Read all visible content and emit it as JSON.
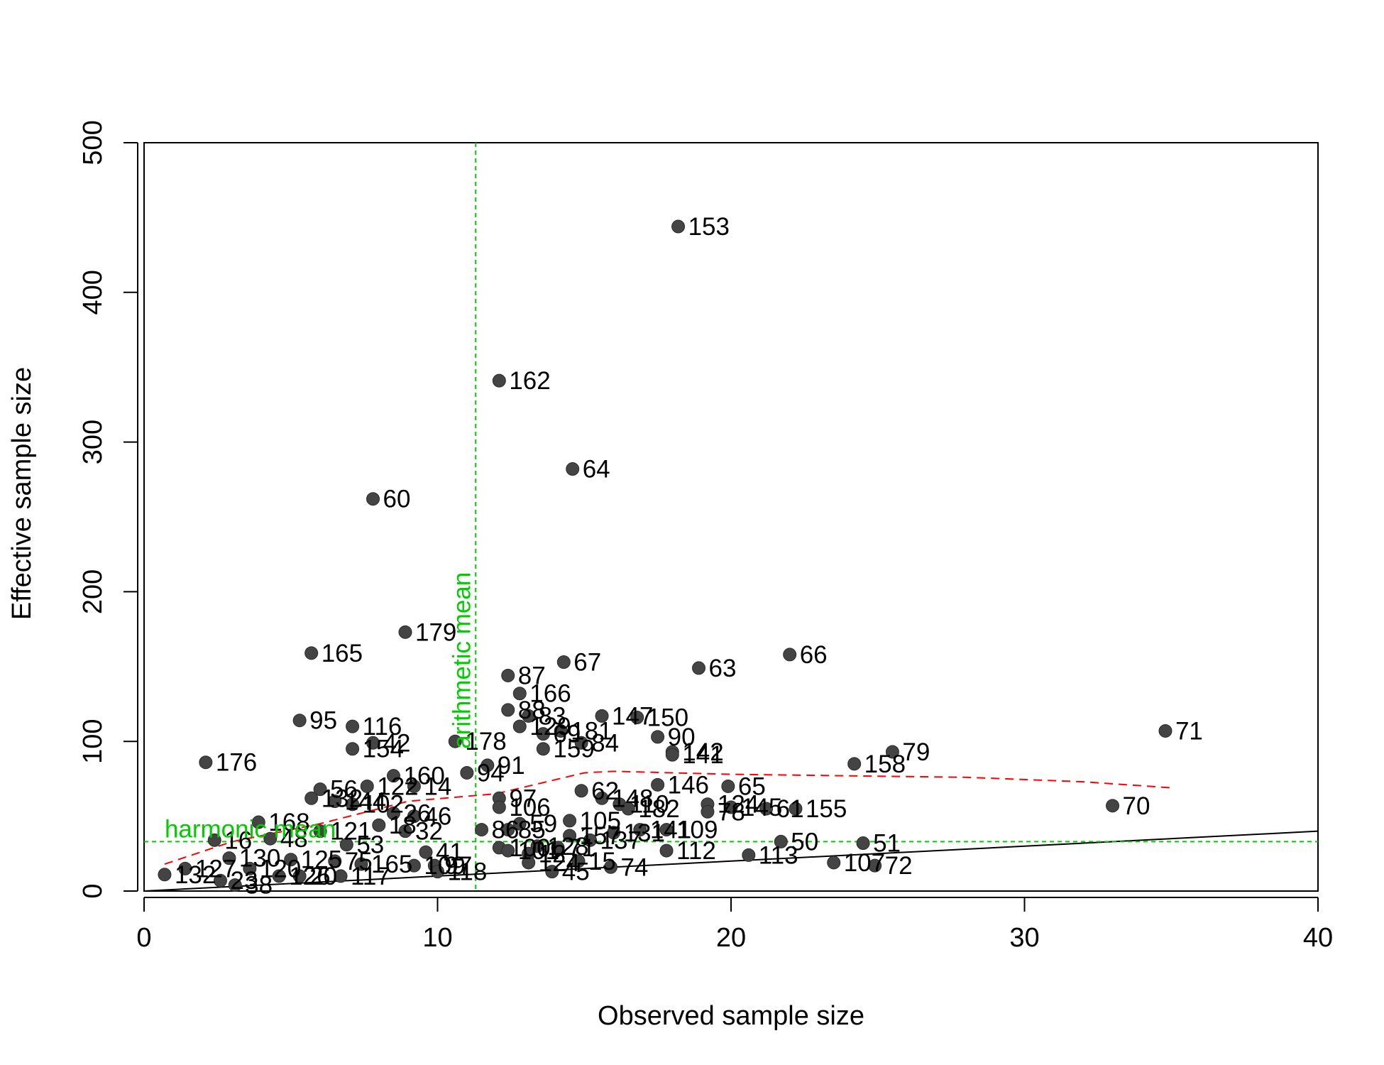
{
  "chart_data": {
    "type": "scatter",
    "title": "",
    "xlabel": "Observed sample size",
    "ylabel": "Effective sample size",
    "xlim": [
      0,
      40
    ],
    "ylim": [
      0,
      500
    ],
    "xticks": [
      0,
      10,
      20,
      30,
      40
    ],
    "yticks": [
      0,
      100,
      200,
      300,
      400,
      500
    ],
    "colors": {
      "points": "#444444",
      "reference_lines": "#00cc00",
      "smooth": "#ff0000",
      "identity": "#000000"
    },
    "reference_lines": {
      "arithmetic_mean": {
        "label": "arithmetic mean",
        "x": 11.3
      },
      "harmonic_mean": {
        "label": "harmonic mean",
        "y": 33
      }
    },
    "identity_line": {
      "x": [
        0,
        40
      ],
      "y": [
        0,
        40
      ]
    },
    "smooth_line": {
      "x": [
        0.7,
        3,
        6,
        9,
        12,
        15,
        16,
        20,
        24,
        28,
        32,
        35
      ],
      "y": [
        18,
        33,
        45,
        60,
        65,
        79,
        80,
        78,
        77,
        76,
        73,
        69
      ]
    },
    "points": [
      {
        "x": 18.2,
        "y": 444,
        "label": "153"
      },
      {
        "x": 12.1,
        "y": 341,
        "label": "162"
      },
      {
        "x": 14.6,
        "y": 282,
        "label": "64"
      },
      {
        "x": 7.8,
        "y": 262,
        "label": "60"
      },
      {
        "x": 8.9,
        "y": 173,
        "label": "179"
      },
      {
        "x": 5.7,
        "y": 159,
        "label": "165"
      },
      {
        "x": 14.3,
        "y": 153,
        "label": "67"
      },
      {
        "x": 22.0,
        "y": 158,
        "label": "66"
      },
      {
        "x": 18.9,
        "y": 149,
        "label": "63"
      },
      {
        "x": 12.4,
        "y": 144,
        "label": "87"
      },
      {
        "x": 12.8,
        "y": 132,
        "label": "166"
      },
      {
        "x": 12.4,
        "y": 121,
        "label": "88"
      },
      {
        "x": 13.1,
        "y": 117,
        "label": "83"
      },
      {
        "x": 15.6,
        "y": 117,
        "label": "147"
      },
      {
        "x": 16.8,
        "y": 116,
        "label": "150"
      },
      {
        "x": 5.3,
        "y": 114,
        "label": "95"
      },
      {
        "x": 7.1,
        "y": 110,
        "label": "116"
      },
      {
        "x": 12.8,
        "y": 110,
        "label": "129"
      },
      {
        "x": 13.6,
        "y": 105,
        "label": "69"
      },
      {
        "x": 14.2,
        "y": 107,
        "label": "181"
      },
      {
        "x": 17.5,
        "y": 103,
        "label": "90"
      },
      {
        "x": 7.8,
        "y": 99,
        "label": "42"
      },
      {
        "x": 10.6,
        "y": 100,
        "label": "178"
      },
      {
        "x": 14.9,
        "y": 99,
        "label": "84"
      },
      {
        "x": 7.1,
        "y": 95,
        "label": "154"
      },
      {
        "x": 13.6,
        "y": 95,
        "label": "159"
      },
      {
        "x": 18.0,
        "y": 93,
        "label": "142"
      },
      {
        "x": 18.0,
        "y": 91,
        "label": "141"
      },
      {
        "x": 34.8,
        "y": 107,
        "label": "71"
      },
      {
        "x": 25.5,
        "y": 93,
        "label": "79"
      },
      {
        "x": 24.2,
        "y": 85,
        "label": "158"
      },
      {
        "x": 2.1,
        "y": 86,
        "label": "176"
      },
      {
        "x": 11.7,
        "y": 84,
        "label": "91"
      },
      {
        "x": 11.0,
        "y": 79,
        "label": "94"
      },
      {
        "x": 8.5,
        "y": 77,
        "label": "160"
      },
      {
        "x": 9.2,
        "y": 70,
        "label": "14"
      },
      {
        "x": 17.5,
        "y": 71,
        "label": "146"
      },
      {
        "x": 19.9,
        "y": 70,
        "label": "65"
      },
      {
        "x": 14.9,
        "y": 67,
        "label": "62"
      },
      {
        "x": 6.0,
        "y": 68,
        "label": "56"
      },
      {
        "x": 7.6,
        "y": 70,
        "label": "122"
      },
      {
        "x": 5.7,
        "y": 62,
        "label": "132"
      },
      {
        "x": 12.1,
        "y": 62,
        "label": "97"
      },
      {
        "x": 6.5,
        "y": 60,
        "label": "144"
      },
      {
        "x": 7.1,
        "y": 58,
        "label": "102"
      },
      {
        "x": 15.6,
        "y": 62,
        "label": "148"
      },
      {
        "x": 16.2,
        "y": 58,
        "label": "110"
      },
      {
        "x": 19.2,
        "y": 58,
        "label": "124"
      },
      {
        "x": 33.0,
        "y": 57,
        "label": "70"
      },
      {
        "x": 16.5,
        "y": 55,
        "label": "182"
      },
      {
        "x": 12.1,
        "y": 56,
        "label": "106"
      },
      {
        "x": 20.0,
        "y": 56,
        "label": "145"
      },
      {
        "x": 21.2,
        "y": 55,
        "label": "61"
      },
      {
        "x": 22.2,
        "y": 55,
        "label": "155"
      },
      {
        "x": 19.2,
        "y": 53,
        "label": "78"
      },
      {
        "x": 8.5,
        "y": 52,
        "label": "26"
      },
      {
        "x": 9.2,
        "y": 50,
        "label": "46"
      },
      {
        "x": 14.5,
        "y": 47,
        "label": "105"
      },
      {
        "x": 3.9,
        "y": 46,
        "label": "168"
      },
      {
        "x": 12.8,
        "y": 45,
        "label": "59"
      },
      {
        "x": 8.0,
        "y": 44,
        "label": "18"
      },
      {
        "x": 16.9,
        "y": 41,
        "label": "141"
      },
      {
        "x": 17.8,
        "y": 41,
        "label": "109"
      },
      {
        "x": 11.5,
        "y": 41,
        "label": "86"
      },
      {
        "x": 12.4,
        "y": 41,
        "label": "85"
      },
      {
        "x": 8.9,
        "y": 40,
        "label": "32"
      },
      {
        "x": 6.0,
        "y": 40,
        "label": "121"
      },
      {
        "x": 16.0,
        "y": 39,
        "label": "131"
      },
      {
        "x": 14.5,
        "y": 37,
        "label": "157"
      },
      {
        "x": 2.4,
        "y": 34,
        "label": "16"
      },
      {
        "x": 4.3,
        "y": 35,
        "label": "48"
      },
      {
        "x": 15.2,
        "y": 34,
        "label": "137"
      },
      {
        "x": 21.7,
        "y": 33,
        "label": "50"
      },
      {
        "x": 24.5,
        "y": 32,
        "label": "51"
      },
      {
        "x": 6.9,
        "y": 31,
        "label": "53"
      },
      {
        "x": 13.4,
        "y": 30,
        "label": "128"
      },
      {
        "x": 12.1,
        "y": 29,
        "label": "100"
      },
      {
        "x": 14.1,
        "y": 29,
        "label": "71"
      },
      {
        "x": 17.8,
        "y": 27,
        "label": "112"
      },
      {
        "x": 9.6,
        "y": 26,
        "label": "41"
      },
      {
        "x": 12.4,
        "y": 27,
        "label": "101"
      },
      {
        "x": 13.1,
        "y": 25,
        "label": "12"
      },
      {
        "x": 20.6,
        "y": 24,
        "label": "113"
      },
      {
        "x": 2.9,
        "y": 22,
        "label": "130"
      },
      {
        "x": 5.0,
        "y": 21,
        "label": "125"
      },
      {
        "x": 6.5,
        "y": 20,
        "label": "75"
      },
      {
        "x": 13.1,
        "y": 19,
        "label": "124"
      },
      {
        "x": 23.5,
        "y": 19,
        "label": "107"
      },
      {
        "x": 14.8,
        "y": 20,
        "label": "15"
      },
      {
        "x": 7.4,
        "y": 18,
        "label": "165"
      },
      {
        "x": 9.2,
        "y": 17,
        "label": "109"
      },
      {
        "x": 9.9,
        "y": 17,
        "label": "97"
      },
      {
        "x": 15.9,
        "y": 16,
        "label": "74"
      },
      {
        "x": 24.9,
        "y": 17,
        "label": "72"
      },
      {
        "x": 1.4,
        "y": 15,
        "label": "127"
      },
      {
        "x": 3.6,
        "y": 15,
        "label": "120"
      },
      {
        "x": 10.0,
        "y": 13,
        "label": "118"
      },
      {
        "x": 13.9,
        "y": 13,
        "label": "45"
      },
      {
        "x": 0.7,
        "y": 11,
        "label": "132"
      },
      {
        "x": 4.6,
        "y": 10,
        "label": "126"
      },
      {
        "x": 5.3,
        "y": 10,
        "label": "20"
      },
      {
        "x": 6.7,
        "y": 10,
        "label": "117"
      },
      {
        "x": 2.6,
        "y": 7,
        "label": "23"
      },
      {
        "x": 3.1,
        "y": 4,
        "label": "38"
      }
    ]
  }
}
